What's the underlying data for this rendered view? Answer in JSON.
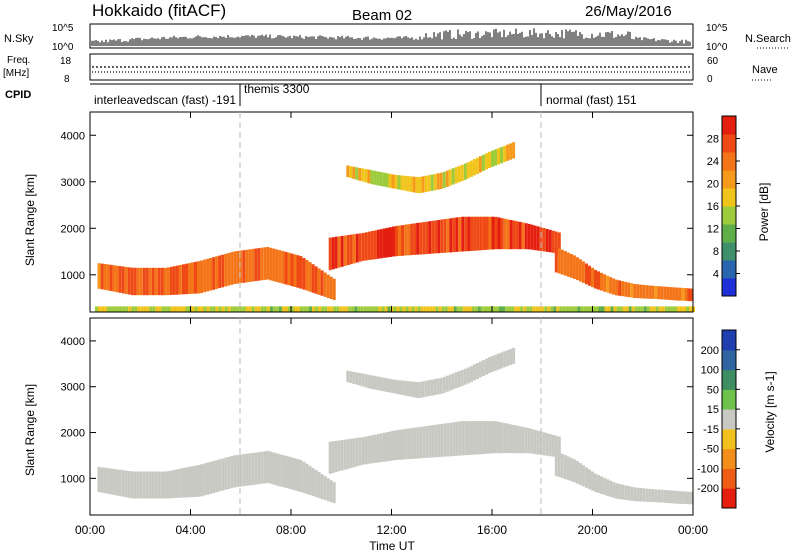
{
  "header": {
    "station": "Hokkaido (fitACF)",
    "beam": "Beam 02",
    "date": "26/May/2016"
  },
  "top_panels": {
    "nsky_label": "N.Sky",
    "nsky_ticks": [
      "10^5",
      "10^0"
    ],
    "nsearch_label": "N.Search",
    "nsearch_ticks": [
      "10^5",
      "10^0"
    ],
    "freq_label": "Freq.",
    "freq_unit": "[MHz]",
    "freq_ticks": [
      "18",
      "8"
    ],
    "nave_label": "Nave",
    "nave_ticks": [
      "60",
      "0"
    ],
    "cpid_label": "CPID",
    "cpid_entries": [
      {
        "text": "interleavedscan (fast) -191",
        "t": 0
      },
      {
        "text": "themis 3300",
        "t": 6
      },
      {
        "text": "normal (fast) 151",
        "t": 18
      }
    ]
  },
  "chart_data": [
    {
      "type": "heatmap",
      "name": "power",
      "ylabel": "Slant Range [km]",
      "yticks": [
        "1000",
        "2000",
        "3000",
        "4000"
      ],
      "ylim": [
        200,
        4500
      ],
      "xlim": [
        0,
        24
      ],
      "colorbar": {
        "label": "Power [dB]",
        "ticks": [
          "4",
          "8",
          "12",
          "16",
          "20",
          "24",
          "28"
        ],
        "range": [
          0,
          32
        ],
        "colors": [
          "#1f2fd8",
          "#2a66b0",
          "#3f8f6a",
          "#5fae4a",
          "#9ccc3c",
          "#f1c41c",
          "#f59a1b",
          "#f47418",
          "#ef4a15",
          "#e41f10"
        ]
      },
      "bands": [
        {
          "t0": 0.3,
          "t1": 9.7,
          "r_bottom": [
            700,
            560,
            560,
            600,
            800,
            900,
            700,
            450
          ],
          "r_top": [
            1250,
            1150,
            1150,
            1300,
            1500,
            1600,
            1400,
            900
          ],
          "level": 26
        },
        {
          "t0": 9.5,
          "t1": 18.7,
          "r_bottom": [
            1100,
            1300,
            1400,
            1450,
            1500,
            1550,
            1550,
            1450
          ],
          "r_top": [
            1800,
            1900,
            2050,
            2150,
            2250,
            2250,
            2100,
            1900
          ],
          "level": 29
        },
        {
          "t0": 18.5,
          "t1": 24,
          "r_bottom": [
            1050,
            900,
            700,
            560,
            500,
            480,
            450,
            430
          ],
          "r_top": [
            1600,
            1400,
            1100,
            900,
            800,
            760,
            730,
            700
          ],
          "level": 25
        },
        {
          "t0": 10.2,
          "t1": 16.8,
          "r_bottom": [
            3100,
            2950,
            2850,
            2750,
            2850,
            3050,
            3300,
            3500
          ],
          "r_top": [
            3350,
            3250,
            3150,
            3100,
            3200,
            3400,
            3650,
            3850
          ],
          "level": 18
        },
        {
          "t0": 0.2,
          "t1": 24,
          "r_bottom": [
            200,
            200,
            200,
            200,
            200,
            200,
            200,
            200
          ],
          "r_top": [
            320,
            320,
            320,
            320,
            320,
            320,
            320,
            320
          ],
          "level": 15
        }
      ]
    },
    {
      "type": "heatmap",
      "name": "velocity",
      "ylabel": "Slant Range [km]",
      "yticks": [
        "1000",
        "2000",
        "3000",
        "4000"
      ],
      "ylim": [
        200,
        4500
      ],
      "xlim": [
        0,
        24
      ],
      "colorbar": {
        "label": "Velocity [m s-1]",
        "ticks": [
          "200",
          "100",
          "50",
          "15",
          "-15",
          "-50",
          "-100",
          "-200"
        ],
        "colors": [
          "#1f3fb0",
          "#2f64a0",
          "#3f8d63",
          "#6ec24c",
          "#c9c9c3",
          "#f2c01c",
          "#f28e1a",
          "#ef5c16",
          "#e61e10"
        ]
      },
      "bands": [
        {
          "t0": 0.3,
          "t1": 9.7,
          "r_bottom": [
            700,
            560,
            560,
            600,
            800,
            900,
            700,
            450
          ],
          "r_top": [
            1250,
            1150,
            1150,
            1300,
            1500,
            1600,
            1400,
            900
          ],
          "level": 0
        },
        {
          "t0": 9.5,
          "t1": 18.7,
          "r_bottom": [
            1100,
            1300,
            1400,
            1450,
            1500,
            1550,
            1550,
            1450
          ],
          "r_top": [
            1800,
            1900,
            2050,
            2150,
            2250,
            2250,
            2100,
            1900
          ],
          "level": 0
        },
        {
          "t0": 18.5,
          "t1": 24,
          "r_bottom": [
            1050,
            900,
            700,
            560,
            500,
            480,
            450,
            430
          ],
          "r_top": [
            1600,
            1400,
            1100,
            900,
            800,
            760,
            730,
            700
          ],
          "level": 0
        },
        {
          "t0": 10.2,
          "t1": 16.8,
          "r_bottom": [
            3100,
            2950,
            2850,
            2750,
            2850,
            3050,
            3300,
            3500
          ],
          "r_top": [
            3350,
            3250,
            3150,
            3100,
            3200,
            3400,
            3650,
            3850
          ],
          "level": 0
        }
      ]
    }
  ],
  "xaxis": {
    "ticks": [
      "00:00",
      "04:00",
      "08:00",
      "12:00",
      "16:00",
      "20:00",
      "00:00"
    ],
    "label": "Time UT"
  }
}
